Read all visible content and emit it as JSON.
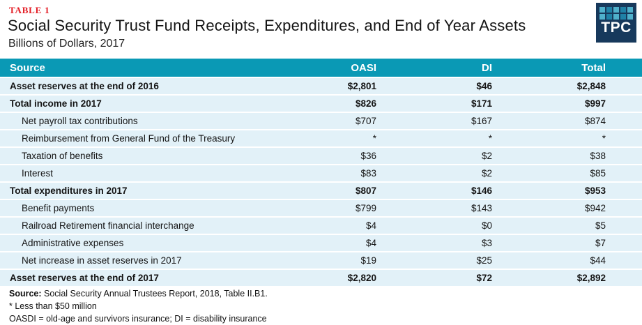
{
  "header": {
    "table_label": "TABLE 1",
    "title": "Social Security Trust Fund Receipts, Expenditures, and End of Year Assets",
    "subtitle": "Billions of Dollars, 2017"
  },
  "logo": {
    "text": "TPC",
    "squares": [
      "light",
      "dark",
      "light",
      "dark",
      "light",
      "light",
      "dark",
      "light",
      "dark",
      "light"
    ]
  },
  "table": {
    "columns": [
      "Source",
      "OASI",
      "DI",
      "Total"
    ],
    "rows": [
      {
        "label": "Asset reserves at the end of 2016",
        "values": [
          "$2,801",
          "$46",
          "$2,848"
        ],
        "bold": true,
        "indent": false
      },
      {
        "label": "Total income in 2017",
        "values": [
          "$826",
          "$171",
          "$997"
        ],
        "bold": true,
        "indent": false
      },
      {
        "label": "Net payroll tax contributions",
        "values": [
          "$707",
          "$167",
          "$874"
        ],
        "bold": false,
        "indent": true
      },
      {
        "label": "Reimbursement from General Fund of the Treasury",
        "values": [
          "*",
          "*",
          "*"
        ],
        "bold": false,
        "indent": true
      },
      {
        "label": "Taxation of benefits",
        "values": [
          "$36",
          "$2",
          "$38"
        ],
        "bold": false,
        "indent": true
      },
      {
        "label": "Interest",
        "values": [
          "$83",
          "$2",
          "$85"
        ],
        "bold": false,
        "indent": true
      },
      {
        "label": "Total expenditures in 2017",
        "values": [
          "$807",
          "$146",
          "$953"
        ],
        "bold": true,
        "indent": false
      },
      {
        "label": "Benefit payments",
        "values": [
          "$799",
          "$143",
          "$942"
        ],
        "bold": false,
        "indent": true
      },
      {
        "label": "Railroad Retirement financial interchange",
        "values": [
          "$4",
          "$0",
          "$5"
        ],
        "bold": false,
        "indent": true
      },
      {
        "label": "Administrative expenses",
        "values": [
          "$4",
          "$3",
          "$7"
        ],
        "bold": false,
        "indent": true
      },
      {
        "label": "Net increase in asset reserves in 2017",
        "values": [
          "$19",
          "$25",
          "$44"
        ],
        "bold": false,
        "indent": true
      },
      {
        "label": "Asset reserves at the end of 2017",
        "values": [
          "$2,820",
          "$72",
          "$2,892"
        ],
        "bold": true,
        "indent": false
      }
    ]
  },
  "footnotes": {
    "source_label": "Source:",
    "source_text": " Social Security Annual Trustees Report, 2018, Table II.B1.",
    "asterisk_note": "* Less than $50 million",
    "abbreviation_note": "OASDI = old-age and survivors insurance; DI = disability insurance"
  },
  "colors": {
    "header_teal": "#0a99b5",
    "row_light_blue": "#e2f1f8",
    "label_red": "#e31b23",
    "logo_navy": "#17395c",
    "logo_square_light": "#4fb0cb",
    "logo_square_dark": "#1f81a6"
  },
  "chart_data": {
    "type": "table",
    "title": "Social Security Trust Fund Receipts, Expenditures, and End of Year Assets",
    "subtitle": "Billions of Dollars, 2017",
    "units": "billions of dollars",
    "columns": [
      "Source",
      "OASI",
      "DI",
      "Total"
    ],
    "rows": [
      [
        "Asset reserves at the end of 2016",
        2801,
        46,
        2848
      ],
      [
        "Total income in 2017",
        826,
        171,
        997
      ],
      [
        "Net payroll tax contributions",
        707,
        167,
        874
      ],
      [
        "Reimbursement from General Fund of the Treasury",
        "*",
        "*",
        "*"
      ],
      [
        "Taxation of benefits",
        36,
        2,
        38
      ],
      [
        "Interest",
        83,
        2,
        85
      ],
      [
        "Total expenditures in 2017",
        807,
        146,
        953
      ],
      [
        "Benefit payments",
        799,
        143,
        942
      ],
      [
        "Railroad Retirement financial interchange",
        4,
        0,
        5
      ],
      [
        "Administrative expenses",
        4,
        3,
        7
      ],
      [
        "Net increase in asset reserves in 2017",
        19,
        25,
        44
      ],
      [
        "Asset reserves at the end of 2017",
        2820,
        72,
        2892
      ]
    ],
    "footnote_asterisk": "Less than $50 million",
    "source": "Social Security Annual Trustees Report, 2018, Table II.B1."
  }
}
